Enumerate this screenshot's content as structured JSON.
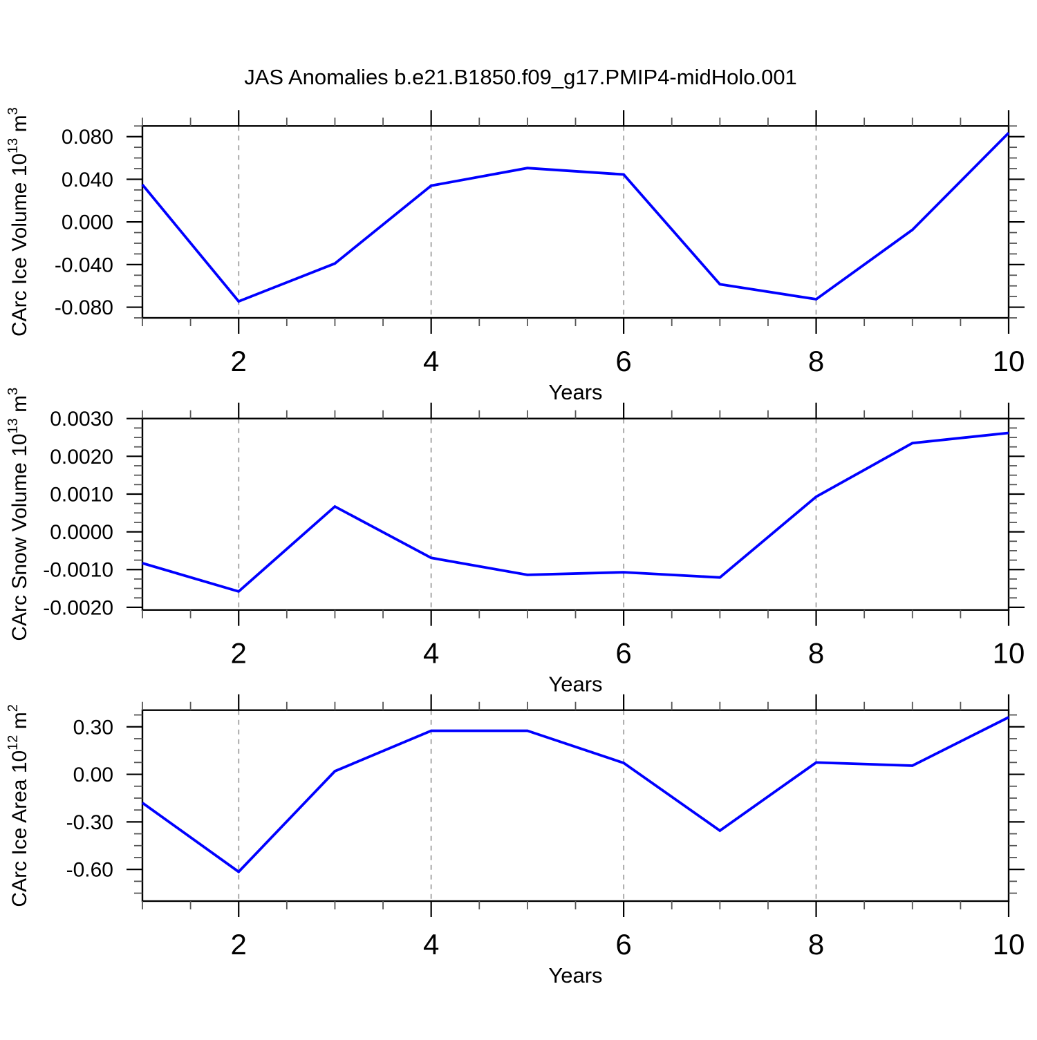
{
  "title": "JAS Anomalies b.e21.B1850.f09_g17.PMIP4-midHolo.001",
  "line_color": "#0000ff",
  "grid_color": "#aaaaaa",
  "chart_data": [
    {
      "type": "line",
      "series_name": "CArc Ice Volume anomaly",
      "x": [
        1,
        2,
        3,
        4,
        5,
        6,
        7,
        8,
        9,
        10
      ],
      "values": [
        0.035,
        -0.0745,
        -0.039,
        0.034,
        0.0505,
        0.0445,
        -0.0585,
        -0.0725,
        -0.0074,
        0.0835
      ],
      "xlabel": "Years",
      "ylabel": "CArc Ice Volume 10^13 m^3",
      "ylabel_rich": [
        {
          "t": "CArc Ice Volume 10"
        },
        {
          "t": "13",
          "sup": true
        },
        {
          "t": " m"
        },
        {
          "t": "3",
          "sup": true
        }
      ],
      "xlim": [
        1,
        10
      ],
      "ylim": [
        -0.09,
        0.09
      ],
      "x_ticks": [
        {
          "v": 2,
          "label": "2"
        },
        {
          "v": 4,
          "label": "4"
        },
        {
          "v": 6,
          "label": "6"
        },
        {
          "v": 8,
          "label": "8"
        },
        {
          "v": 10,
          "label": "10"
        }
      ],
      "x_minor_step": 0.5,
      "y_ticks": [
        {
          "v": 0.08,
          "label": "0.080"
        },
        {
          "v": 0.04,
          "label": "0.040"
        },
        {
          "v": 0.0,
          "label": "0.000"
        },
        {
          "v": -0.04,
          "label": "-0.040"
        },
        {
          "v": -0.08,
          "label": "-0.080"
        }
      ],
      "y_minor_step": 0.01,
      "grid_x": [
        2,
        4,
        6,
        8
      ],
      "grid_style": "vertical-dashed",
      "legend": "none"
    },
    {
      "type": "line",
      "series_name": "CArc Snow Volume anomaly",
      "x": [
        1,
        2,
        3,
        4,
        5,
        6,
        7,
        8,
        9,
        10
      ],
      "values": [
        -0.00083,
        -0.00158,
        0.00067,
        -0.00069,
        -0.00114,
        -0.00107,
        -0.00121,
        0.00093,
        0.00235,
        0.00262
      ],
      "xlabel": "Years",
      "ylabel": "CArc Snow Volume 10^13 m^3",
      "ylabel_rich": [
        {
          "t": "CArc Snow Volume 10"
        },
        {
          "t": "13",
          "sup": true
        },
        {
          "t": " m"
        },
        {
          "t": "3",
          "sup": true
        }
      ],
      "xlim": [
        1,
        10
      ],
      "ylim": [
        -0.00207,
        0.003
      ],
      "x_ticks": [
        {
          "v": 2,
          "label": "2"
        },
        {
          "v": 4,
          "label": "4"
        },
        {
          "v": 6,
          "label": "6"
        },
        {
          "v": 8,
          "label": "8"
        },
        {
          "v": 10,
          "label": "10"
        }
      ],
      "x_minor_step": 0.5,
      "y_ticks": [
        {
          "v": 0.003,
          "label": "0.0030"
        },
        {
          "v": 0.002,
          "label": "0.0020"
        },
        {
          "v": 0.001,
          "label": "0.0010"
        },
        {
          "v": 0.0,
          "label": "0.0000"
        },
        {
          "v": -0.001,
          "label": "-0.0010"
        },
        {
          "v": -0.002,
          "label": "-0.0020"
        }
      ],
      "y_minor_step": 0.00025,
      "grid_x": [
        2,
        4,
        6,
        8
      ],
      "grid_style": "vertical-dashed",
      "legend": "none"
    },
    {
      "type": "line",
      "series_name": "CArc Ice Area anomaly",
      "x": [
        1,
        2,
        3,
        4,
        5,
        6,
        7,
        8,
        9,
        10
      ],
      "values": [
        -0.18,
        -0.615,
        0.02,
        0.275,
        0.275,
        0.072,
        -0.355,
        0.075,
        0.055,
        0.36
      ],
      "xlabel": "Years",
      "ylabel": "CArc Ice Area 10^12 m^2",
      "ylabel_rich": [
        {
          "t": "CArc Ice Area 10"
        },
        {
          "t": "12",
          "sup": true
        },
        {
          "t": " m"
        },
        {
          "t": "2",
          "sup": true
        }
      ],
      "xlim": [
        1,
        10
      ],
      "ylim": [
        -0.8,
        0.405
      ],
      "x_ticks": [
        {
          "v": 2,
          "label": "2"
        },
        {
          "v": 4,
          "label": "4"
        },
        {
          "v": 6,
          "label": "6"
        },
        {
          "v": 8,
          "label": "8"
        },
        {
          "v": 10,
          "label": "10"
        }
      ],
      "x_minor_step": 0.5,
      "y_ticks": [
        {
          "v": 0.3,
          "label": "0.30"
        },
        {
          "v": 0.0,
          "label": "0.00"
        },
        {
          "v": -0.3,
          "label": "-0.30"
        },
        {
          "v": -0.6,
          "label": "-0.60"
        }
      ],
      "y_minor_step": 0.075,
      "grid_x": [
        2,
        4,
        6,
        8
      ],
      "grid_style": "vertical-dashed",
      "legend": "none"
    }
  ]
}
